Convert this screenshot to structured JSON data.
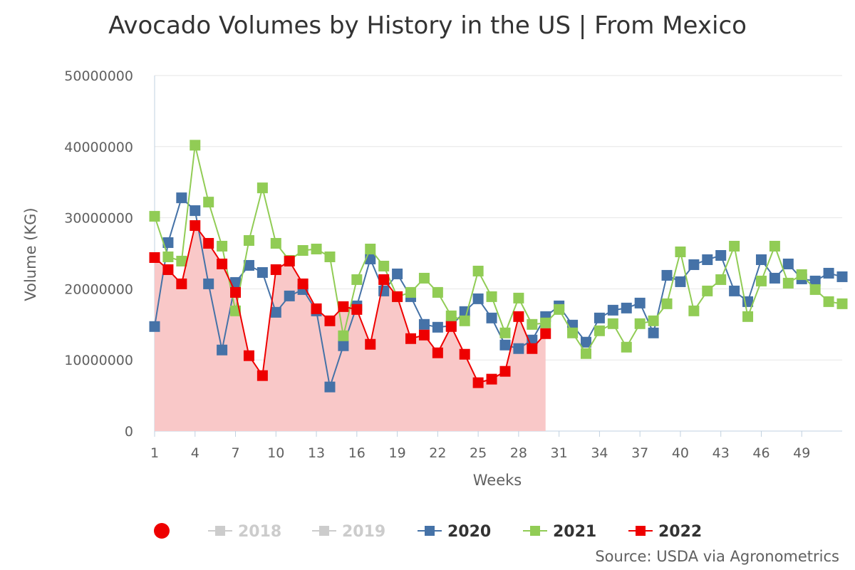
{
  "chart_data": {
    "type": "line",
    "title": "Avocado Volumes by History in the US | From Mexico",
    "xlabel": "Weeks",
    "ylabel": "Volume (KG)",
    "ylim": [
      0,
      50000000
    ],
    "yticks": [
      "0",
      "10000000",
      "20000000",
      "30000000",
      "40000000",
      "50000000"
    ],
    "xlim": [
      1,
      52
    ],
    "xticks": [
      1,
      4,
      7,
      10,
      13,
      16,
      19,
      22,
      25,
      28,
      31,
      34,
      37,
      40,
      43,
      46,
      49
    ],
    "grid": true,
    "legend_position": "bottom",
    "series": [
      {
        "name": "2018",
        "visible": false,
        "color": "#cccccc",
        "marker": "square",
        "values": []
      },
      {
        "name": "2019",
        "visible": false,
        "color": "#cccccc",
        "marker": "square",
        "values": []
      },
      {
        "name": "2020",
        "visible": true,
        "color": "#4572a7",
        "marker": "square",
        "values": [
          14700000,
          26500000,
          32800000,
          31000000,
          20700000,
          11400000,
          20900000,
          23300000,
          22300000,
          16700000,
          19000000,
          19900000,
          16900000,
          6200000,
          12000000,
          17600000,
          24200000,
          19700000,
          22100000,
          18900000,
          15000000,
          14600000,
          14800000,
          16800000,
          18600000,
          15900000,
          12100000,
          11600000,
          12800000,
          16100000,
          17600000,
          14900000,
          12500000,
          15900000,
          17000000,
          17300000,
          18000000,
          13800000,
          21900000,
          21000000,
          23400000,
          24100000,
          24700000,
          19700000,
          18200000,
          24100000,
          21500000,
          23500000,
          21400000,
          21100000,
          22200000,
          21700000
        ]
      },
      {
        "name": "2021",
        "visible": true,
        "color": "#91cc55",
        "marker": "square",
        "values": [
          30200000,
          24500000,
          23900000,
          40200000,
          32200000,
          26000000,
          16900000,
          26800000,
          34200000,
          26400000,
          24000000,
          25400000,
          25600000,
          24500000,
          13400000,
          21300000,
          25600000,
          23200000,
          18900000,
          19500000,
          21500000,
          19500000,
          16200000,
          15500000,
          22500000,
          18900000,
          13800000,
          18700000,
          15000000,
          15200000,
          17100000,
          13800000,
          10900000,
          14100000,
          15100000,
          11800000,
          15100000,
          15500000,
          17900000,
          25200000,
          16900000,
          19700000,
          21300000,
          26000000,
          16100000,
          21100000,
          26000000,
          20800000,
          22000000,
          19900000,
          18200000,
          17900000
        ]
      },
      {
        "name": "2022",
        "visible": true,
        "color": "#ee0000",
        "marker": "square",
        "values": [
          24400000,
          22700000,
          20700000,
          28900000,
          26400000,
          23500000,
          19500000,
          10600000,
          7800000,
          22700000,
          23900000,
          20700000,
          17200000,
          15500000,
          17500000,
          17100000,
          12200000,
          21300000,
          18900000,
          13000000,
          13500000,
          11000000,
          14700000,
          10800000,
          6800000,
          7300000,
          8400000,
          16100000,
          11600000,
          13700000
        ]
      }
    ]
  },
  "legend": {
    "marker_dot_color": "#ee0000",
    "items": [
      {
        "label": "2018",
        "color": "#cccccc",
        "text_color": "#cccccc"
      },
      {
        "label": "2019",
        "color": "#cccccc",
        "text_color": "#cccccc"
      },
      {
        "label": "2020",
        "color": "#4572a7",
        "text_color": "#333333"
      },
      {
        "label": "2021",
        "color": "#91cc55",
        "text_color": "#333333"
      },
      {
        "label": "2022",
        "color": "#ee0000",
        "text_color": "#333333"
      }
    ]
  },
  "source": "Source: USDA via Agronometrics",
  "colors": {
    "area_fill": "#f9c8c8",
    "grid": "#e6e6e6",
    "axis": "#c0d0e0"
  }
}
